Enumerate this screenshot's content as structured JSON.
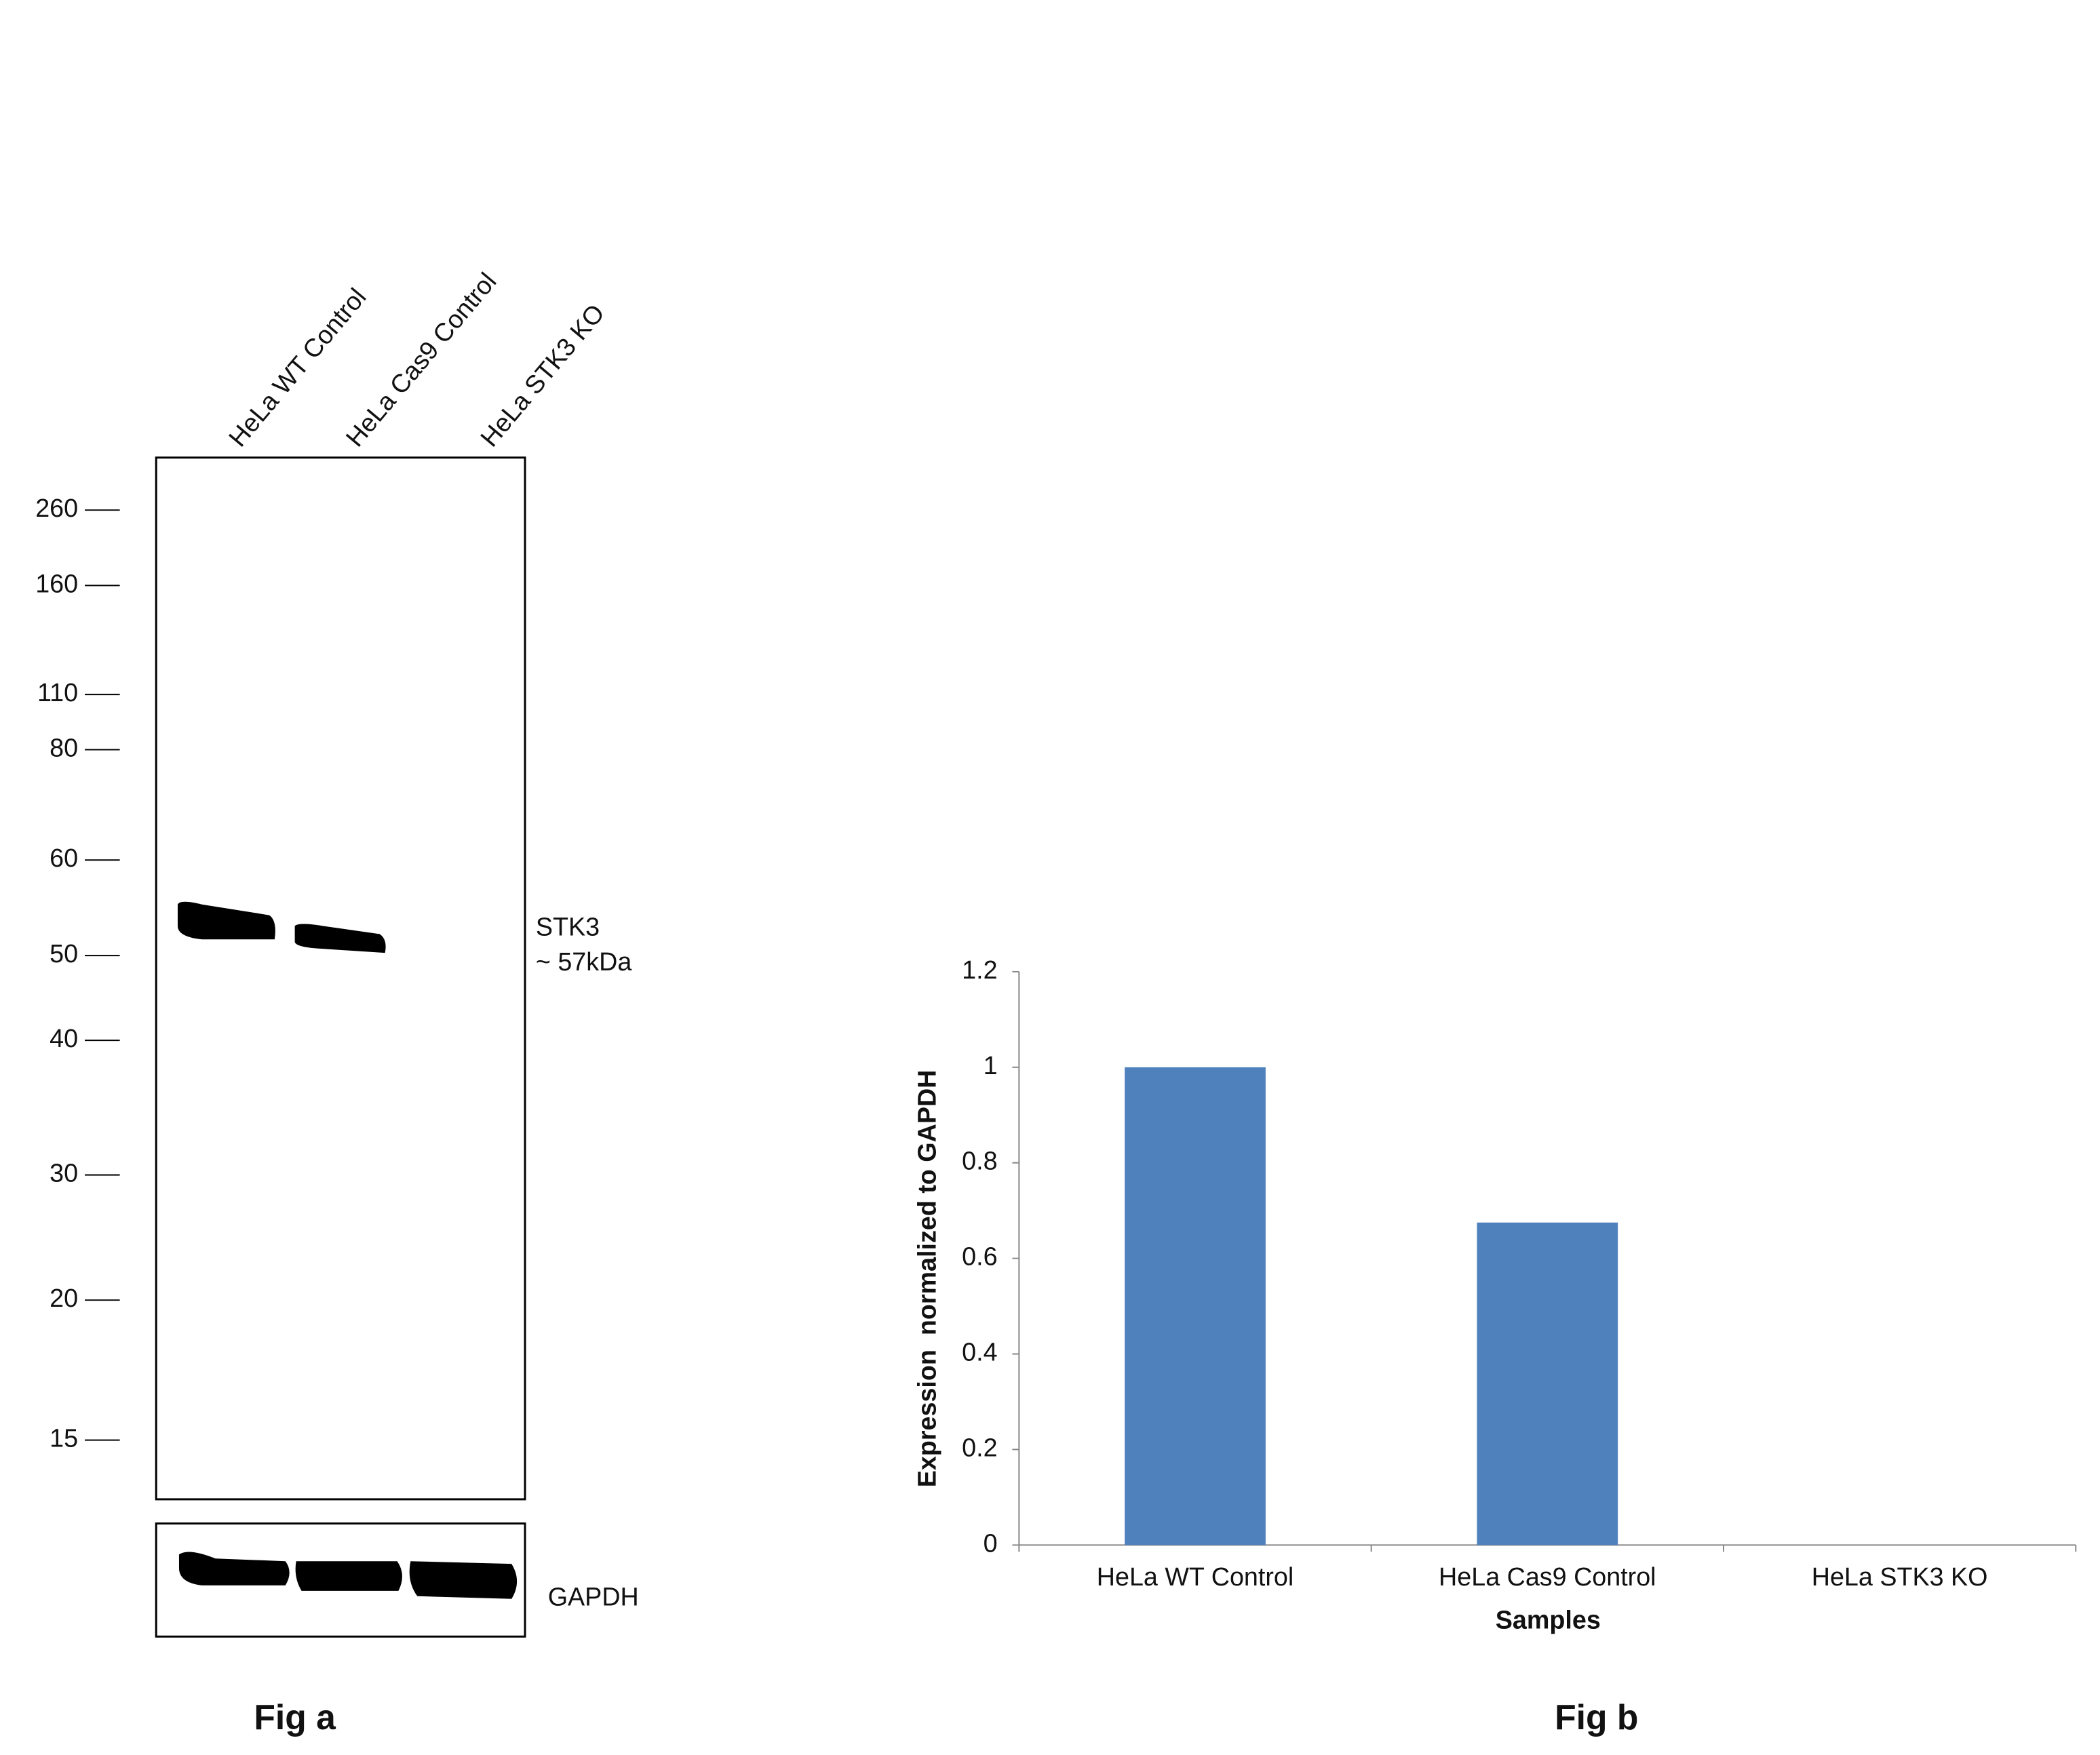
{
  "figure_a": {
    "lanes": [
      "HeLa WT Control",
      "HeLa Cas9 Control",
      "HeLa STK3 KO"
    ],
    "markers": [
      260,
      160,
      110,
      80,
      60,
      50,
      40,
      30,
      20,
      15
    ],
    "band_label": [
      "STK3",
      "~ 57kDa"
    ],
    "loading_control": "GAPDH",
    "caption": "Fig a"
  },
  "chart_data": {
    "type": "bar",
    "categories": [
      "HeLa WT Control",
      "HeLa Cas9 Control",
      "HeLa STK3 KO"
    ],
    "values": [
      1,
      0.675,
      0
    ],
    "color": "#4f81bd",
    "ylim": [
      0,
      1.2
    ],
    "yticks": [
      0,
      0.2,
      0.4,
      0.6,
      0.8,
      1,
      1.2
    ],
    "xlabel": "Samples",
    "ylabel": "Expression  normalized to GAPDH",
    "caption": "Fig b"
  }
}
